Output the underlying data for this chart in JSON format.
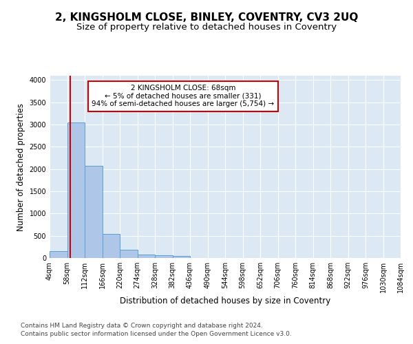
{
  "title": "2, KINGSHOLM CLOSE, BINLEY, COVENTRY, CV3 2UQ",
  "subtitle": "Size of property relative to detached houses in Coventry",
  "xlabel": "Distribution of detached houses by size in Coventry",
  "ylabel": "Number of detached properties",
  "footer_line1": "Contains HM Land Registry data © Crown copyright and database right 2024.",
  "footer_line2": "Contains public sector information licensed under the Open Government Licence v3.0.",
  "bin_edges": [
    4,
    58,
    112,
    166,
    220,
    274,
    328,
    382,
    436,
    490,
    544,
    598,
    652,
    706,
    760,
    814,
    868,
    922,
    976,
    1030,
    1084
  ],
  "bar_heights": [
    150,
    3050,
    2080,
    540,
    190,
    80,
    55,
    40,
    0,
    0,
    0,
    0,
    0,
    0,
    0,
    0,
    0,
    0,
    0,
    0
  ],
  "bar_color": "#aec6e8",
  "bar_edge_color": "#5a9fd4",
  "property_line_x": 68,
  "property_line_color": "#cc0000",
  "annotation_text": "2 KINGSHOLM CLOSE: 68sqm\n← 5% of detached houses are smaller (331)\n94% of semi-detached houses are larger (5,754) →",
  "annotation_box_color": "#cc0000",
  "annotation_facecolor": "white",
  "ylim": [
    0,
    4100
  ],
  "yticks": [
    0,
    500,
    1000,
    1500,
    2000,
    2500,
    3000,
    3500,
    4000
  ],
  "bg_color": "#dce9f5",
  "plot_bg_color": "#dce9f5",
  "fig_bg_color": "#ffffff",
  "grid_color": "#ffffff",
  "title_fontsize": 11,
  "subtitle_fontsize": 9.5,
  "axis_label_fontsize": 8.5,
  "tick_fontsize": 7,
  "annotation_fontsize": 7.5,
  "footer_fontsize": 6.5
}
